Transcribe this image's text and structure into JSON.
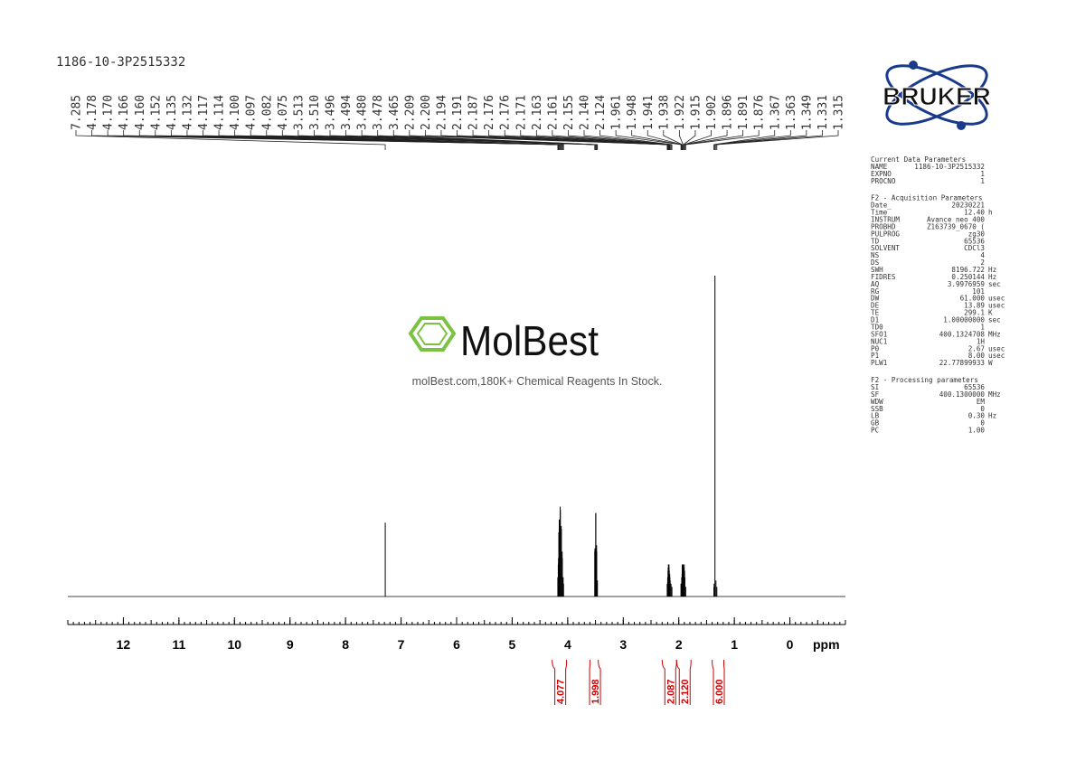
{
  "chart_data": {
    "type": "nmr",
    "title": "1186-10-3P2515332",
    "x_label": "ppm",
    "xlim": [
      13,
      -1
    ],
    "xticks": [
      12,
      11,
      10,
      9,
      8,
      7,
      6,
      5,
      4,
      3,
      2,
      1,
      0
    ],
    "ylim": [
      0,
      100
    ],
    "color": "#000000",
    "peaks": {
      "x": [
        7.285,
        4.178,
        4.17,
        4.166,
        4.16,
        4.152,
        4.135,
        4.132,
        4.117,
        4.114,
        4.1,
        4.097,
        4.082,
        4.075,
        3.513,
        3.51,
        3.496,
        3.494,
        3.48,
        3.478,
        3.465,
        2.209,
        2.2,
        2.194,
        2.191,
        2.187,
        2.176,
        2.176,
        2.171,
        2.163,
        2.161,
        2.155,
        2.14,
        2.124,
        1.961,
        1.948,
        1.941,
        1.938,
        1.922,
        1.915,
        1.902,
        1.896,
        1.891,
        1.876,
        1.367,
        1.363,
        1.349,
        1.331,
        1.315
      ],
      "x_labels": [
        "7.285",
        "4.178",
        "4.170",
        "4.166",
        "4.160",
        "4.152",
        "4.135",
        "4.132",
        "4.117",
        "4.114",
        "4.100",
        "4.097",
        "4.082",
        "4.075",
        "3.513",
        "3.510",
        "3.496",
        "3.494",
        "3.480",
        "3.478",
        "3.465",
        "2.209",
        "2.200",
        "2.194",
        "2.191",
        "2.187",
        "2.176",
        "2.176",
        "2.171",
        "2.163",
        "2.161",
        "2.155",
        "2.140",
        "2.124",
        "1.961",
        "1.948",
        "1.941",
        "1.938",
        "1.922",
        "1.915",
        "1.902",
        "1.896",
        "1.891",
        "1.876",
        "1.367",
        "1.363",
        "1.349",
        "1.331",
        "1.315"
      ],
      "values": [
        23,
        6,
        10,
        12,
        20,
        24,
        28,
        27,
        22,
        21,
        14,
        12,
        6,
        4,
        14,
        15,
        26,
        26,
        16,
        14,
        5,
        4,
        6,
        8,
        9,
        10,
        10,
        9,
        8,
        7,
        6,
        5,
        4,
        3,
        4,
        6,
        7,
        10,
        10,
        9,
        10,
        8,
        6,
        3,
        3,
        4,
        100,
        5,
        3
      ]
    },
    "integrals": {
      "ranges": [
        [
          4.28,
          4.02
        ],
        [
          3.6,
          3.45
        ],
        [
          2.3,
          2.04
        ],
        [
          2.04,
          1.78
        ],
        [
          1.4,
          1.19
        ]
      ],
      "values": [
        4.077,
        1.998,
        2.087,
        2.12,
        6.0
      ],
      "value_labels": [
        "4.077",
        "1.998",
        "2.087",
        "2.120",
        "6.000"
      ],
      "color": "#cc0000"
    }
  },
  "logo": "BRUKER",
  "watermark": {
    "brand": "MolBest",
    "tagline": "molBest.com,180K+ Chemical Reagents In Stock."
  },
  "parameters": [
    {
      "title": "Current Data Parameters",
      "rows": [
        [
          "NAME",
          "1186-10-3P2515332"
        ],
        [
          "EXPNO",
          "1"
        ],
        [
          "PROCNO",
          "1"
        ]
      ]
    },
    {
      "title": "F2 - Acquisition Parameters",
      "rows": [
        [
          "Date_",
          "20230221"
        ],
        [
          "Time",
          "12.40",
          "h"
        ],
        [
          "INSTRUM",
          "Avance neo 400"
        ],
        [
          "PROBHD",
          "Z163739_0670 ("
        ],
        [
          "PULPROG",
          "zg30"
        ],
        [
          "TD",
          "65536"
        ],
        [
          "SOLVENT",
          "CDCl3"
        ],
        [
          "NS",
          "4"
        ],
        [
          "DS",
          "2"
        ],
        [
          "SWH",
          "8196.722",
          "Hz"
        ],
        [
          "FIDRES",
          "0.250144",
          "Hz"
        ],
        [
          "AQ",
          "3.9976959",
          "sec"
        ],
        [
          "RG",
          "101"
        ],
        [
          "DW",
          "61.000",
          "usec"
        ],
        [
          "DE",
          "13.89",
          "usec"
        ],
        [
          "TE",
          "299.1",
          "K"
        ],
        [
          "D1",
          "1.00000000",
          "sec"
        ],
        [
          "TD0",
          "1"
        ],
        [
          "SFO1",
          "400.1324708",
          "MHz"
        ],
        [
          "NUC1",
          "1H"
        ],
        [
          "P0",
          "2.67",
          "usec"
        ],
        [
          "P1",
          "8.00",
          "usec"
        ],
        [
          "PLW1",
          "22.77899933",
          "W"
        ]
      ]
    },
    {
      "title": "F2 - Processing parameters",
      "rows": [
        [
          "SI",
          "65536"
        ],
        [
          "SF",
          "400.1300000",
          "MHz"
        ],
        [
          "WDW",
          "EM"
        ],
        [
          "SSB",
          "0"
        ],
        [
          "LB",
          "0.30",
          "Hz"
        ],
        [
          "GB",
          "0"
        ],
        [
          "PC",
          "1.00"
        ]
      ]
    }
  ]
}
